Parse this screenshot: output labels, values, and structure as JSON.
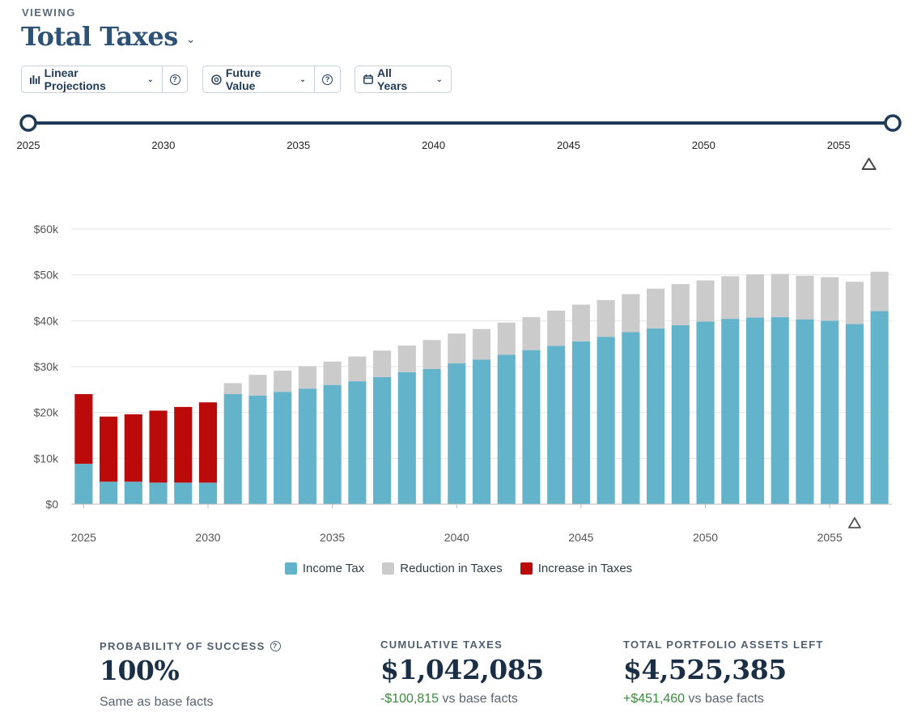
{
  "header": {
    "viewing_label": "VIEWING",
    "title": "Total Taxes",
    "title_chevron": "⌄"
  },
  "controls": {
    "projection_label": "Linear Projections",
    "value_label": "Future Value",
    "years_label": "All Years",
    "help_glyph": "?",
    "chevron": "⌄"
  },
  "slider": {
    "start_year": 2025,
    "end_year": 2057,
    "range_start": 2025,
    "range_end": 2057,
    "marker_year": 2056,
    "tick_labels": [
      "2025",
      "2030",
      "2035",
      "2040",
      "2045",
      "2050",
      "2055"
    ],
    "colors": {
      "track": "#1f3b57",
      "marker": "#444444"
    }
  },
  "chart_data": {
    "type": "bar",
    "stacked": true,
    "title": "",
    "xlabel": "",
    "ylabel": "",
    "ylim": [
      0,
      60000
    ],
    "y_ticks": [
      0,
      10000,
      20000,
      30000,
      40000,
      50000,
      60000
    ],
    "y_tick_labels": [
      "$0",
      "$10k",
      "$20k",
      "$30k",
      "$40k",
      "$50k",
      "$60k"
    ],
    "x_tick_labels": [
      "2025",
      "2030",
      "2035",
      "2040",
      "2045",
      "2050",
      "2055"
    ],
    "marker_year": 2056,
    "grid": true,
    "legend_position": "bottom",
    "categories": [
      2025,
      2026,
      2027,
      2028,
      2029,
      2030,
      2031,
      2032,
      2033,
      2034,
      2035,
      2036,
      2037,
      2038,
      2039,
      2040,
      2041,
      2042,
      2043,
      2044,
      2045,
      2046,
      2047,
      2048,
      2049,
      2050,
      2051,
      2052,
      2053,
      2054,
      2055,
      2056,
      2057
    ],
    "series": [
      {
        "name": "Income Tax",
        "color": "#63b3cb",
        "values": [
          8800,
          4900,
          4900,
          4700,
          4700,
          4700,
          24000,
          23700,
          24500,
          25200,
          26000,
          26800,
          27700,
          28800,
          29500,
          30700,
          31500,
          32600,
          33600,
          34500,
          35500,
          36500,
          37500,
          38300,
          39000,
          39800,
          40400,
          40700,
          40800,
          40300,
          40000,
          39300,
          42100
        ]
      },
      {
        "name": "Reduction in Taxes",
        "color": "#cbcbcb",
        "values": [
          0,
          0,
          0,
          0,
          0,
          0,
          2400,
          4500,
          4600,
          4900,
          5100,
          5400,
          5800,
          5800,
          6300,
          6500,
          6700,
          7000,
          7200,
          7700,
          8000,
          8000,
          8300,
          8700,
          9000,
          9000,
          9300,
          9400,
          9400,
          9500,
          9500,
          9200,
          8600
        ]
      },
      {
        "name": "Increase in Taxes",
        "color": "#bb0a0a",
        "values": [
          15200,
          14200,
          14700,
          15700,
          16500,
          17500,
          0,
          0,
          0,
          0,
          0,
          0,
          0,
          0,
          0,
          0,
          0,
          0,
          0,
          0,
          0,
          0,
          0,
          0,
          0,
          0,
          0,
          0,
          0,
          0,
          0,
          0,
          0
        ]
      }
    ]
  },
  "stats": {
    "probability": {
      "label": "PROBABILITY OF SUCCESS",
      "value": "100%",
      "sub": "Same as base facts"
    },
    "cumulative": {
      "label": "CUMULATIVE TAXES",
      "value": "$1,042,085",
      "delta": "-$100,815",
      "sub": " vs base facts"
    },
    "portfolio": {
      "label": "TOTAL PORTFOLIO ASSETS LEFT",
      "value": "$4,525,385",
      "delta": "+$451,460",
      "sub": " vs base facts"
    }
  }
}
